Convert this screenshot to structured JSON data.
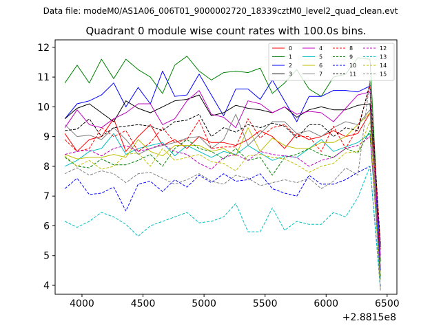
{
  "header": {
    "data_file": "Data file: modeM0/AS1A06_006T01_9000002720_18339cztM0_level2_quad_clean.evt"
  },
  "chart_data": {
    "type": "line",
    "title": "Quadrant 0 module wise count rates with 100.0s bins.",
    "xlabel": "",
    "ylabel": "",
    "x_offset_label": "+2.8815e8",
    "xlim": [
      3780,
      6580
    ],
    "ylim": [
      3.7,
      12.25
    ],
    "x_ticks": [
      4000,
      4500,
      5000,
      5500,
      6000,
      6500
    ],
    "y_ticks": [
      4,
      5,
      6,
      7,
      8,
      9,
      10,
      11,
      12
    ],
    "legend_position": "top-right",
    "x": [
      3860,
      3960,
      4060,
      4160,
      4260,
      4360,
      4460,
      4560,
      4660,
      4760,
      4860,
      4960,
      5060,
      5160,
      5260,
      5360,
      5460,
      5560,
      5660,
      5760,
      5860,
      5960,
      6060,
      6160,
      6260,
      6360,
      6445
    ],
    "series": [
      {
        "name": "0",
        "color": "#ff0000",
        "dash": "solid",
        "values": [
          9.1,
          8.5,
          8.9,
          9.0,
          9.6,
          8.5,
          9.0,
          9.4,
          8.7,
          8.9,
          8.6,
          9.0,
          8.8,
          8.8,
          8.7,
          8.9,
          9.2,
          9.0,
          8.6,
          9.1,
          8.9,
          9.0,
          9.2,
          9.0,
          9.1,
          9.8,
          5.3
        ]
      },
      {
        "name": "1",
        "color": "#008000",
        "dash": "solid",
        "values": [
          10.8,
          11.4,
          10.8,
          11.6,
          10.95,
          11.6,
          11.25,
          11.0,
          10.45,
          11.4,
          11.7,
          11.2,
          10.9,
          11.15,
          11.2,
          11.15,
          11.3,
          10.45,
          10.8,
          11.25,
          10.6,
          10.35,
          11.0,
          11.1,
          11.65,
          11.6,
          4.8
        ]
      },
      {
        "name": "2",
        "color": "#0000ff",
        "dash": "solid",
        "values": [
          9.6,
          10.1,
          10.2,
          10.4,
          10.8,
          10.0,
          10.65,
          10.1,
          11.2,
          10.35,
          10.4,
          11.1,
          10.4,
          9.7,
          10.6,
          10.6,
          10.25,
          10.9,
          10.2,
          9.5,
          10.35,
          10.35,
          10.55,
          10.55,
          10.5,
          10.7,
          4.5
        ]
      },
      {
        "name": "3",
        "color": "#000000",
        "dash": "solid",
        "values": [
          9.6,
          9.95,
          10.1,
          9.8,
          9.5,
          10.2,
          9.95,
          9.8,
          10.0,
          10.2,
          10.25,
          10.4,
          9.7,
          9.8,
          10.05,
          9.95,
          9.9,
          9.8,
          10.0,
          9.65,
          9.9,
          10.0,
          9.9,
          9.9,
          10.05,
          10.1,
          5.3
        ]
      },
      {
        "name": "4",
        "color": "#bf00bf",
        "dash": "solid",
        "values": [
          9.3,
          9.9,
          9.4,
          9.3,
          9.6,
          9.8,
          10.1,
          10.1,
          9.4,
          9.6,
          10.2,
          10.55,
          9.75,
          9.65,
          9.3,
          10.2,
          10.1,
          9.8,
          10.0,
          9.75,
          9.85,
          9.8,
          9.5,
          9.95,
          10.4,
          10.5,
          5.0
        ]
      },
      {
        "name": "5",
        "color": "#00bfbf",
        "dash": "solid",
        "values": [
          8.0,
          8.2,
          8.5,
          8.6,
          9.1,
          8.4,
          8.6,
          8.7,
          8.8,
          8.35,
          8.7,
          8.5,
          8.3,
          8.5,
          8.4,
          8.7,
          8.45,
          8.2,
          8.35,
          8.3,
          8.6,
          8.9,
          8.5,
          8.65,
          8.8,
          9.1,
          4.2
        ]
      },
      {
        "name": "6",
        "color": "#bfbf00",
        "dash": "solid",
        "values": [
          8.4,
          8.25,
          8.3,
          8.3,
          8.4,
          8.3,
          8.9,
          8.5,
          8.35,
          8.7,
          8.7,
          8.7,
          8.5,
          8.6,
          8.35,
          9.3,
          8.5,
          8.95,
          8.7,
          8.6,
          8.6,
          8.8,
          8.8,
          9.0,
          9.4,
          9.8,
          4.3
        ]
      },
      {
        "name": "7",
        "color": "#808080",
        "dash": "solid",
        "values": [
          9.4,
          9.0,
          9.05,
          8.9,
          9.3,
          8.9,
          8.4,
          8.6,
          8.7,
          8.8,
          8.95,
          9.0,
          8.6,
          8.9,
          9.75,
          8.7,
          9.1,
          9.5,
          9.5,
          9.1,
          9.2,
          9.0,
          9.3,
          9.5,
          9.4,
          9.9,
          4.2
        ]
      },
      {
        "name": "8",
        "color": "#ff0000",
        "dash": "dashed",
        "values": [
          8.9,
          8.5,
          8.6,
          9.3,
          9.0,
          9.2,
          8.5,
          8.8,
          9.3,
          8.8,
          8.9,
          9.55,
          8.6,
          8.65,
          8.65,
          9.6,
          8.95,
          9.3,
          9.4,
          9.0,
          9.0,
          8.5,
          9.35,
          8.6,
          9.3,
          10.7,
          5.2
        ]
      },
      {
        "name": "9",
        "color": "#008000",
        "dash": "dashed",
        "values": [
          8.3,
          8.0,
          7.95,
          8.25,
          8.05,
          8.05,
          8.2,
          8.4,
          8.0,
          8.6,
          8.9,
          8.6,
          8.5,
          8.25,
          8.6,
          8.2,
          8.3,
          7.7,
          8.3,
          8.4,
          8.6,
          8.4,
          8.3,
          8.6,
          8.45,
          9.2,
          4.3
        ]
      },
      {
        "name": "10",
        "color": "#0000ff",
        "dash": "dashed",
        "values": [
          7.25,
          7.6,
          7.05,
          7.1,
          7.3,
          6.5,
          7.4,
          7.5,
          7.15,
          7.55,
          7.3,
          7.7,
          7.45,
          7.75,
          7.5,
          7.55,
          7.75,
          7.25,
          7.1,
          7.0,
          7.7,
          7.4,
          7.4,
          7.55,
          7.8,
          8.0,
          3.95
        ]
      },
      {
        "name": "11",
        "color": "#000000",
        "dash": "dashed",
        "values": [
          9.2,
          9.25,
          9.6,
          9.0,
          9.3,
          9.35,
          9.4,
          9.35,
          9.2,
          9.5,
          9.55,
          9.75,
          9.0,
          9.3,
          9.15,
          9.4,
          9.3,
          9.45,
          9.35,
          8.95,
          9.4,
          9.4,
          9.0,
          9.3,
          9.2,
          10.8,
          5.4
        ]
      },
      {
        "name": "12",
        "color": "#bf00bf",
        "dash": "dashed",
        "values": [
          8.4,
          8.5,
          8.55,
          8.35,
          8.6,
          8.7,
          8.5,
          8.6,
          8.75,
          8.5,
          8.4,
          8.1,
          7.9,
          8.3,
          8.4,
          8.2,
          8.5,
          8.4,
          8.35,
          8.3,
          8.0,
          8.2,
          8.3,
          8.6,
          8.7,
          9.0,
          4.6
        ]
      },
      {
        "name": "13",
        "color": "#00bfbf",
        "dash": "dashed",
        "values": [
          6.15,
          5.95,
          6.15,
          6.45,
          6.3,
          6.05,
          5.65,
          6.0,
          6.15,
          6.3,
          6.45,
          6.1,
          6.15,
          6.3,
          6.75,
          5.8,
          5.8,
          6.6,
          5.85,
          6.15,
          6.05,
          6.05,
          6.45,
          6.3,
          6.95,
          8.0,
          3.85
        ]
      },
      {
        "name": "14",
        "color": "#bfbf00",
        "dash": "dashed",
        "values": [
          8.35,
          8.0,
          8.2,
          7.9,
          8.0,
          8.4,
          8.45,
          8.0,
          8.6,
          8.2,
          8.3,
          8.4,
          8.15,
          8.1,
          7.85,
          8.35,
          8.4,
          8.3,
          8.25,
          8.05,
          7.8,
          8.0,
          8.1,
          8.45,
          8.5,
          9.5,
          3.85
        ]
      },
      {
        "name": "15",
        "color": "#808080",
        "dash": "dashed",
        "values": [
          7.75,
          7.95,
          7.7,
          7.85,
          7.75,
          7.45,
          7.75,
          7.8,
          7.6,
          7.4,
          7.55,
          7.75,
          7.5,
          7.4,
          7.7,
          7.6,
          7.35,
          7.45,
          7.55,
          7.45,
          7.6,
          7.25,
          7.5,
          7.95,
          7.7,
          10.9,
          3.8
        ]
      }
    ]
  }
}
